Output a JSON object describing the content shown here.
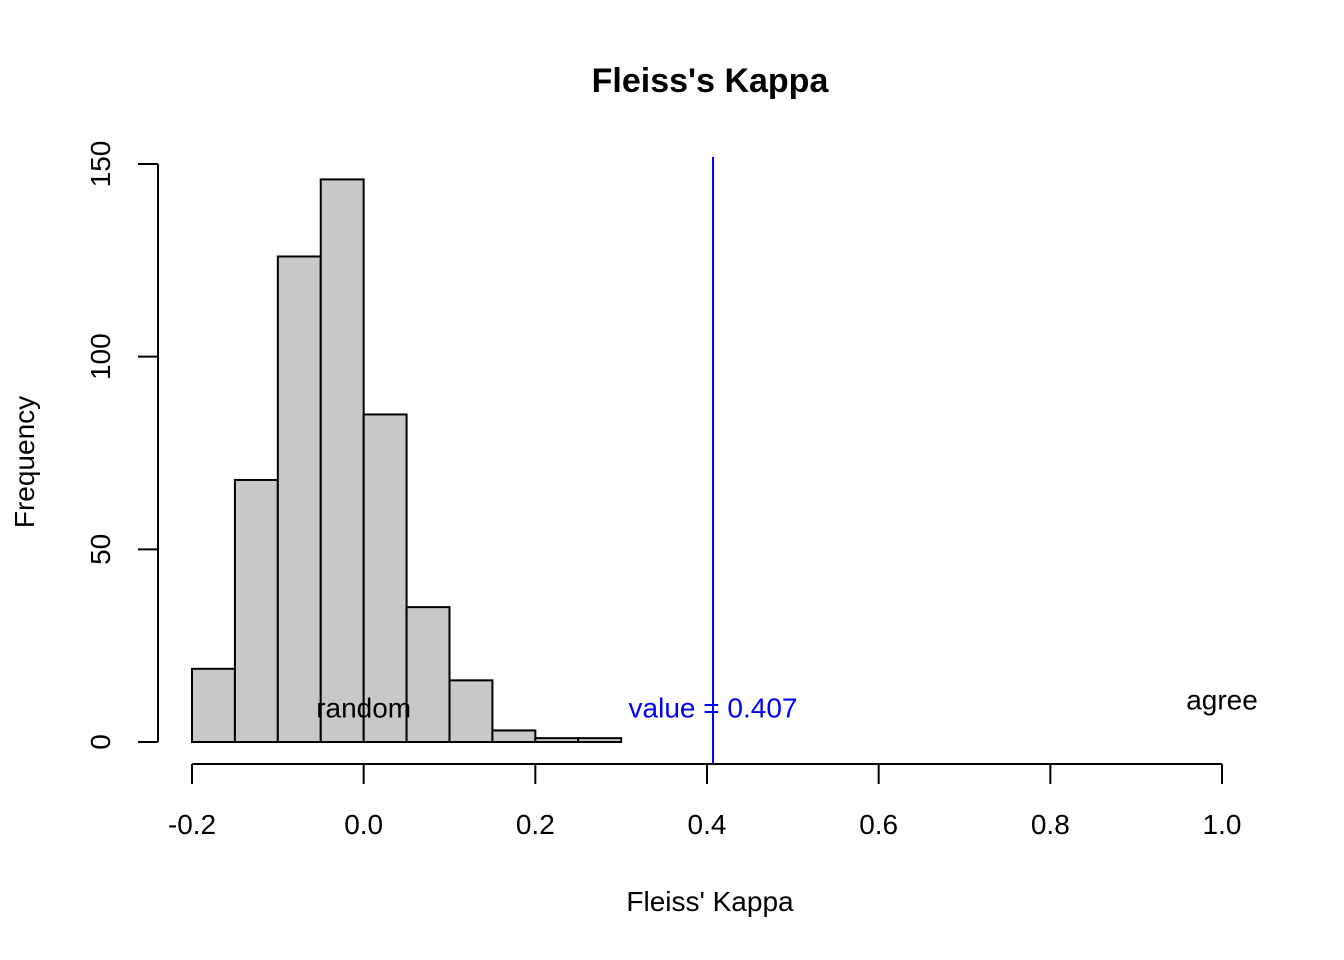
{
  "chart_data": {
    "type": "bar",
    "title": "Fleiss's Kappa",
    "xlabel": "Fleiss' Kappa",
    "ylabel": "Frequency",
    "xlim": [
      -0.2,
      1.0
    ],
    "ylim": [
      0,
      150
    ],
    "x_ticks": [
      -0.2,
      0.0,
      0.2,
      0.4,
      0.6,
      0.8,
      1.0
    ],
    "x_tick_labels": [
      "-0.2",
      "0.0",
      "0.2",
      "0.4",
      "0.6",
      "0.8",
      "1.0"
    ],
    "y_ticks": [
      0,
      50,
      100,
      150
    ],
    "y_tick_labels": [
      "0",
      "50",
      "100",
      "150"
    ],
    "bins": [
      {
        "from": -0.2,
        "to": -0.15,
        "count": 19
      },
      {
        "from": -0.15,
        "to": -0.1,
        "count": 68
      },
      {
        "from": -0.1,
        "to": -0.05,
        "count": 126
      },
      {
        "from": -0.05,
        "to": 0.0,
        "count": 146
      },
      {
        "from": 0.0,
        "to": 0.05,
        "count": 85
      },
      {
        "from": 0.05,
        "to": 0.1,
        "count": 35
      },
      {
        "from": 0.1,
        "to": 0.15,
        "count": 16
      },
      {
        "from": 0.15,
        "to": 0.2,
        "count": 3
      },
      {
        "from": 0.2,
        "to": 0.25,
        "count": 1
      },
      {
        "from": 0.25,
        "to": 0.3,
        "count": 1
      }
    ],
    "bar_fill": "#c8c8c8",
    "bar_stroke": "#000000",
    "reference_line": {
      "x": 0.407,
      "color": "#0000ff"
    },
    "annotations": [
      {
        "text": "random",
        "x": 0.0,
        "y": 9,
        "color": "#000000"
      },
      {
        "text": "value = 0.407",
        "x": 0.407,
        "y": 9,
        "color": "#0000ff"
      },
      {
        "text": "agree",
        "x": 1.0,
        "y": 11,
        "color": "#000000"
      }
    ],
    "grid": false,
    "legend": "none"
  }
}
